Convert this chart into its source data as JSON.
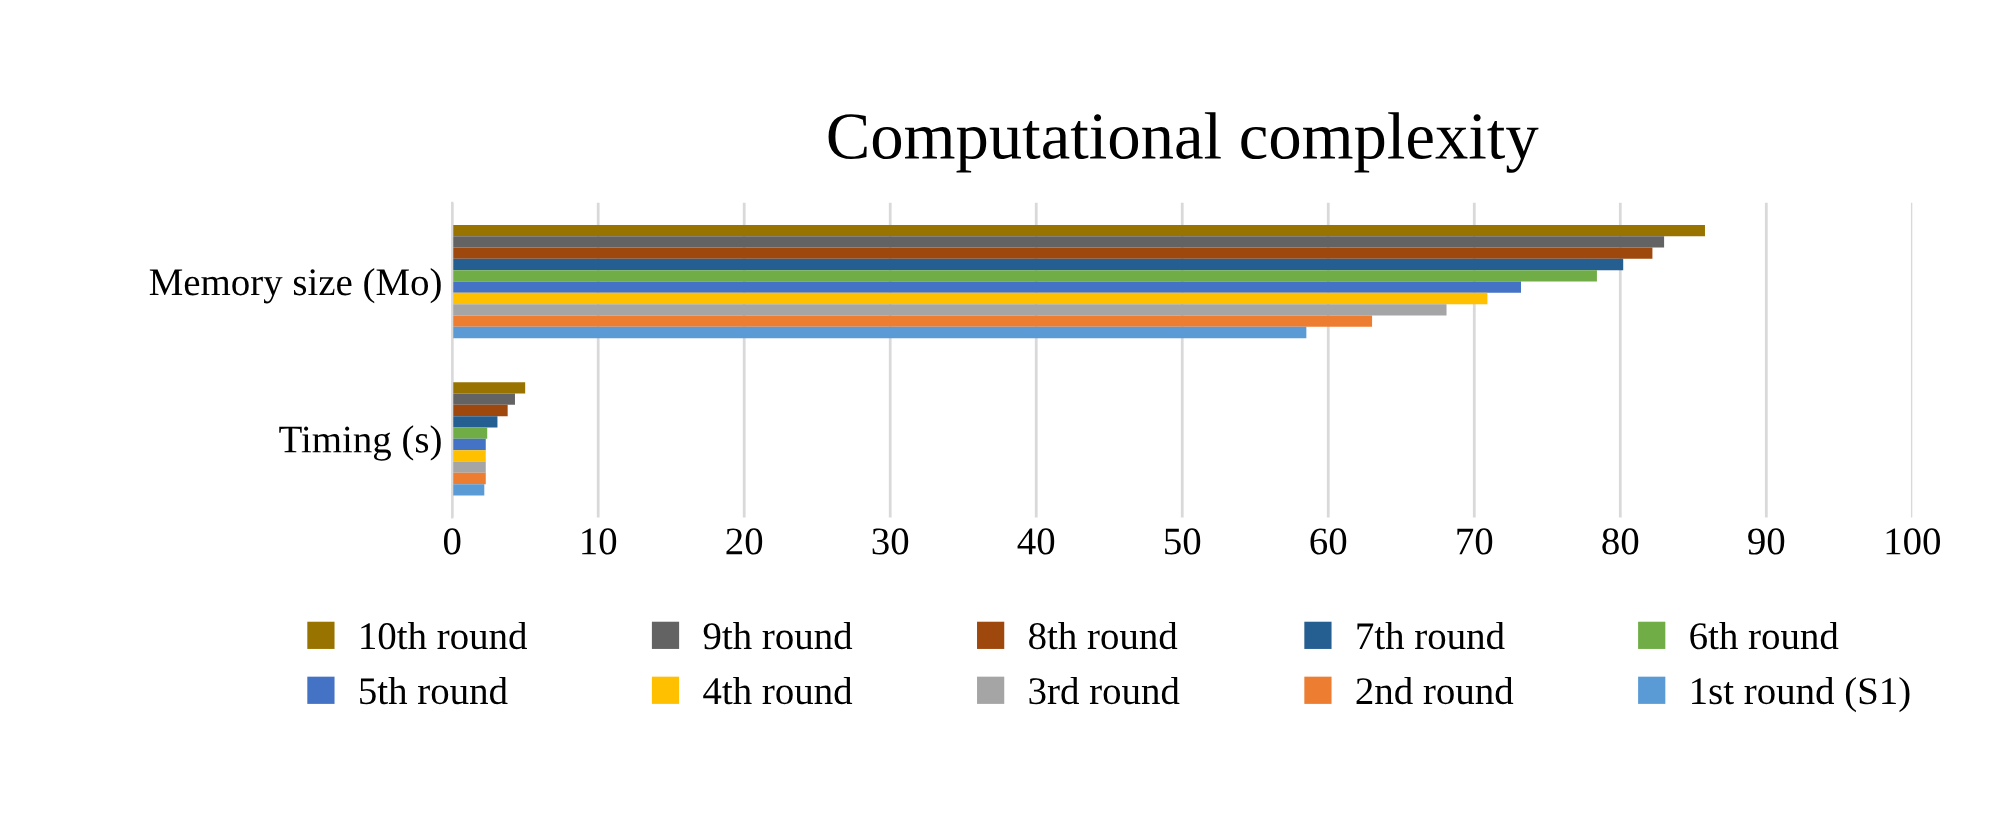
{
  "chart_data": {
    "type": "bar",
    "orientation": "horizontal",
    "title": "Computational complexity",
    "categories": [
      "Memory size (Mo)",
      "Timing (s)"
    ],
    "series": [
      {
        "name": "10th round",
        "color": "#997300",
        "values": [
          85.8,
          5.0
        ]
      },
      {
        "name": "9th round",
        "color": "#636363",
        "values": [
          83.0,
          4.3
        ]
      },
      {
        "name": "8th round",
        "color": "#9e480e",
        "values": [
          82.2,
          3.8
        ]
      },
      {
        "name": "7th round",
        "color": "#255e91",
        "values": [
          80.2,
          3.1
        ]
      },
      {
        "name": "6th round",
        "color": "#70ad47",
        "values": [
          78.4,
          2.4
        ]
      },
      {
        "name": "5th round",
        "color": "#4472c4",
        "values": [
          73.2,
          2.3
        ]
      },
      {
        "name": "4th round",
        "color": "#ffc000",
        "values": [
          70.9,
          2.3
        ]
      },
      {
        "name": "3rd round",
        "color": "#a5a5a5",
        "values": [
          68.1,
          2.3
        ]
      },
      {
        "name": "2nd round",
        "color": "#ed7d31",
        "values": [
          63.0,
          2.3
        ]
      },
      {
        "name": "1st round (S1)",
        "color": "#5b9bd5",
        "values": [
          58.5,
          2.2
        ]
      }
    ],
    "xlim": [
      0,
      100
    ],
    "xticks": [
      0,
      10,
      20,
      30,
      40,
      50,
      60,
      70,
      80,
      90,
      100
    ],
    "grid": "x",
    "legend": "bottom"
  }
}
